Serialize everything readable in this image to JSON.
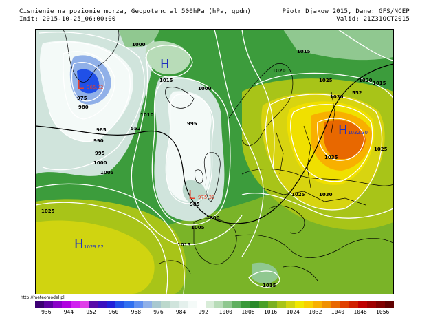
{
  "header": {
    "title": "Cisnienie na poziomie morza, Geopotencjal 500hPa (hPa, gpdm)",
    "init": "Init: 2015-10-25_06:00:00",
    "author": "Piotr Djakow 2015, Dane: GFS/NCEP",
    "valid": "Valid: 21Z31OCT2015"
  },
  "source_url": "http://meteomodel.pl",
  "colorbar": {
    "ticks": [
      "936",
      "944",
      "952",
      "960",
      "968",
      "976",
      "984",
      "992",
      "1000",
      "1008",
      "1016",
      "1024",
      "1032",
      "1040",
      "1048",
      "1056"
    ],
    "colors": [
      "#3b0073",
      "#5c00a0",
      "#8a00c8",
      "#b000e0",
      "#d020f0",
      "#e040e8",
      "#5a0aa8",
      "#3a10c0",
      "#2020d8",
      "#2050e8",
      "#3070f0",
      "#6090f0",
      "#90b0e8",
      "#a8c8d0",
      "#bcd8cc",
      "#d0e4dc",
      "#e4f0ec",
      "#f4faf8",
      "#ffffff",
      "#d8ecd8",
      "#b8dcb8",
      "#90c890",
      "#60b060",
      "#3a9a3a",
      "#2a8a2a",
      "#4aa028",
      "#7ab020",
      "#a8c418",
      "#d0d410",
      "#f0e800",
      "#f8d000",
      "#f8b000",
      "#f09000",
      "#e86800",
      "#e04000",
      "#d02000",
      "#c00000",
      "#a00000",
      "#800000",
      "#600000"
    ]
  },
  "map": {
    "lows": [
      {
        "letter": "L",
        "value": "965.32"
      },
      {
        "letter": "L",
        "value": "975.30"
      }
    ],
    "highs": [
      {
        "letter": "H",
        "value": ""
      },
      {
        "letter": "H",
        "value": "1029.62"
      },
      {
        "letter": "H",
        "value": "1032.30"
      }
    ],
    "isobar_labels": [
      "1000",
      "975",
      "980",
      "985",
      "990",
      "995",
      "1000",
      "1005",
      "1010",
      "1015",
      "1000",
      "995",
      "985",
      "1000",
      "1005",
      "1015",
      "1015",
      "1020",
      "1025",
      "1030",
      "1035",
      "1025",
      "1025",
      "1030",
      "1015",
      "1025",
      "1015",
      "1020"
    ],
    "geopotential_labels": [
      "552",
      "552"
    ]
  }
}
